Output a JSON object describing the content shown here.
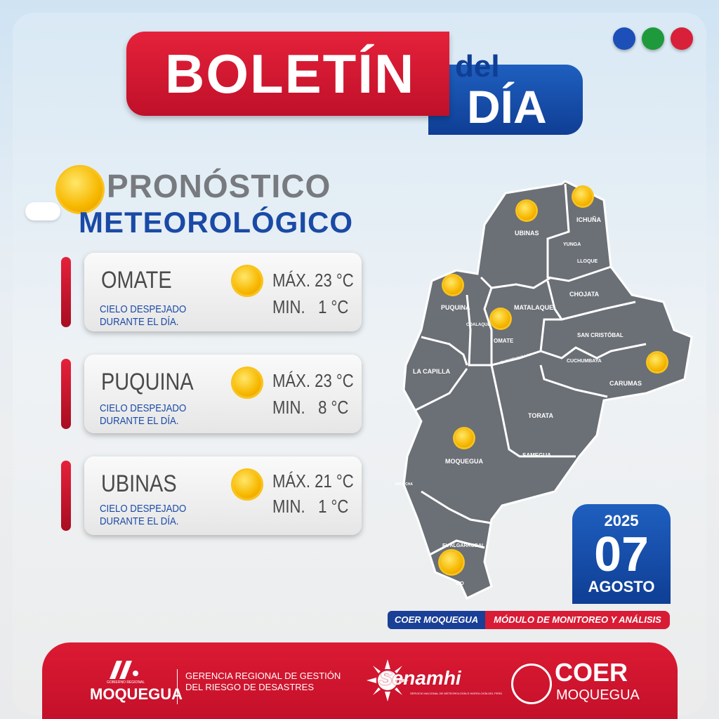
{
  "header": {
    "title": "BOLETÍN",
    "del": "del",
    "dia": "DÍA"
  },
  "dots": {
    "colors": [
      "#1d4fb8",
      "#1e9a3c",
      "#d8203a"
    ]
  },
  "section": {
    "line1": "PRONÓSTICO",
    "line2": "METEOROLÓGICO"
  },
  "forecasts": [
    {
      "name": "OMATE",
      "desc": "CIELO DESPEJADO DURANTE EL DÍA.",
      "max": "MÁX. 23 °C",
      "min": "MIN.   1 °C",
      "icon": "sun-icon"
    },
    {
      "name": "PUQUINA",
      "desc": "CIELO DESPEJADO DURANTE EL DÍA.",
      "max": "MÁX. 23 °C",
      "min": "MIN.   8 °C",
      "icon": "sun-icon"
    },
    {
      "name": "UBINAS",
      "desc": "CIELO DESPEJADO DURANTE EL DÍA.",
      "max": "MÁX. 21 °C",
      "min": "MIN.   1 °C",
      "icon": "sun-icon"
    }
  ],
  "map": {
    "districts": [
      "UBINAS",
      "ICHUÑA",
      "YUNGA",
      "LLOQUE",
      "CHOJATA",
      "PUQUINA",
      "MATALAQUE",
      "COALAQUE",
      "OMATE",
      "QUINISTAQUILLAS",
      "SAN CRISTÓBAL",
      "CUCHUMBAYA",
      "CARUMAS",
      "LA CAPILLA",
      "TORATA",
      "MOQUEGUA",
      "SAMEGUA",
      "PACOCHA",
      "EL ALGARROBAL",
      "ILO"
    ]
  },
  "date": {
    "year": "2025",
    "day": "07",
    "month": "AGOSTO"
  },
  "tag": {
    "left": "COER MOQUEGUA",
    "right": "MÓDULO DE MONITOREO Y ANÁLISIS"
  },
  "footer": {
    "gob_small": "GOBIERNO REGIONAL",
    "gob": "MOQUEGUA",
    "gerencia1": "GERENCIA REGIONAL DE GESTIÓN",
    "gerencia2": "DEL RIESGO DE DESASTRES",
    "senamhi": "Senamhi",
    "senamhi_sub": "SERVICIO NACIONAL DE METEOROLOGÍA E HIDROLOGÍA DEL PERÚ",
    "coer": "COER",
    "coer_sub": "MOQUEGUA"
  }
}
